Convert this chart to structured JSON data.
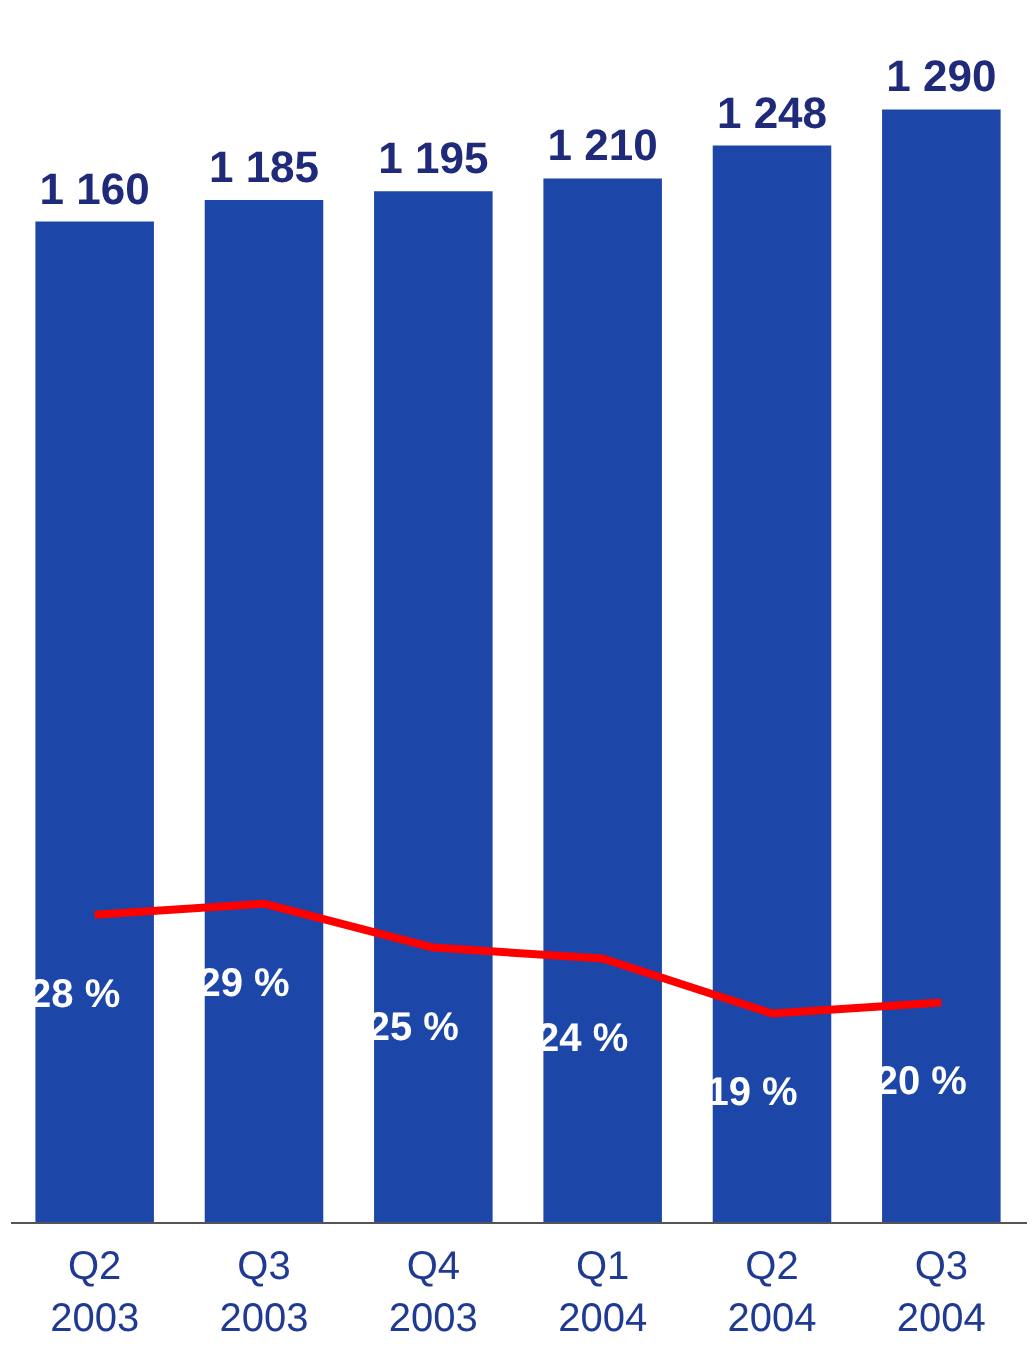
{
  "chart_data": {
    "type": "bar",
    "categories": [
      "Q2 2003",
      "Q3 2003",
      "Q4 2003",
      "Q1 2004",
      "Q2 2004",
      "Q3 2004"
    ],
    "series": [
      {
        "color": "#1c46a8",
        "values": [
          1160,
          1185,
          1195,
          1210,
          1248,
          1290
        ],
        "value_labels": [
          "1 160",
          "1 185",
          "1 195",
          "1 210",
          "1 248",
          "1 290"
        ]
      },
      {
        "type": "line",
        "axis": "y2",
        "color": "#ff0000",
        "values": [
          28,
          29,
          25,
          24,
          19,
          20
        ],
        "value_labels": [
          "28 %",
          "29 %",
          "25 %",
          "24 %",
          "19 %",
          "20 %"
        ]
      }
    ],
    "tick_labels": "x",
    "marker": "none",
    "line_style": "solid"
  }
}
